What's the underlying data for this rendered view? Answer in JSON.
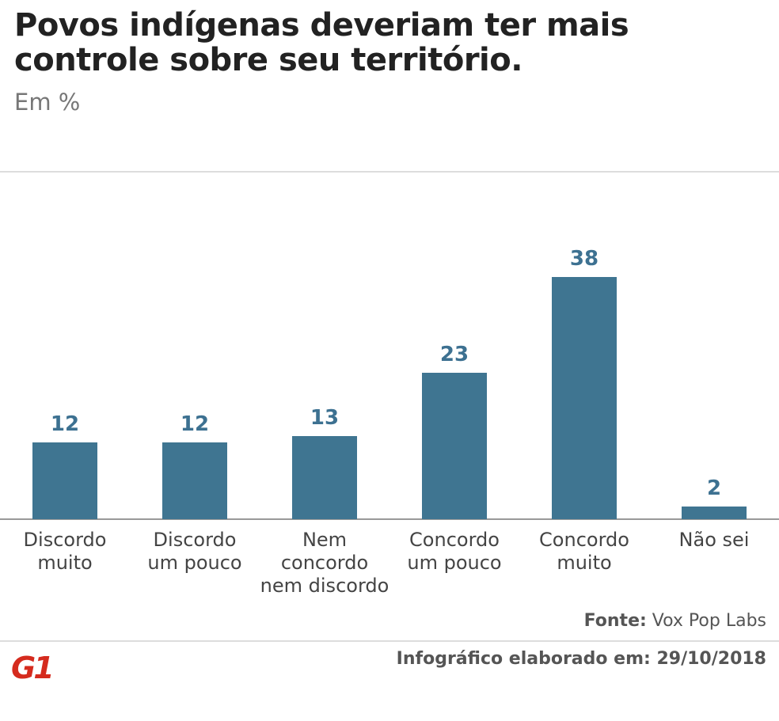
{
  "chart_data": {
    "type": "bar",
    "title": "Povos indígenas deveriam ter mais controle sobre seu território.",
    "subtitle": "Em %",
    "categories": [
      "Discordo muito",
      "Discordo um pouco",
      "Nem concordo nem discordo",
      "Concordo um pouco",
      "Concordo muito",
      "Não sei"
    ],
    "values": [
      12,
      12,
      13,
      23,
      38,
      2
    ],
    "color": "#3f7591",
    "source_label": "Fonte:",
    "source": "Vox Pop Labs",
    "footer": "Infográfico elaborado em: 29/10/2018",
    "logo": "G1"
  }
}
